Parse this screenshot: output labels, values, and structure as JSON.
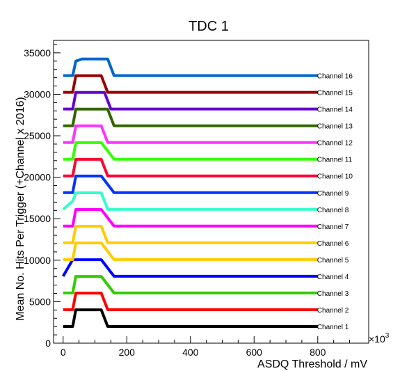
{
  "chart_data": {
    "type": "line",
    "title": "TDC 1",
    "xlabel": "ASDQ Threshold / mV",
    "ylabel": "Mean No. Hits Per Trigger (+Channel x 2016)",
    "x_exponent_label": "×10",
    "x_exponent_power": "3",
    "xlim": [
      -30,
      960
    ],
    "ylim": [
      0,
      36500
    ],
    "x_ticks": [
      0,
      200,
      400,
      600,
      800
    ],
    "y_ticks": [
      0,
      5000,
      10000,
      15000,
      20000,
      25000,
      30000,
      35000
    ],
    "x_tick_labels": [
      "0",
      "200",
      "400",
      "600",
      "800"
    ],
    "y_tick_labels": [
      "0",
      "5000",
      "10000",
      "15000",
      "20000",
      "25000",
      "30000",
      "35000"
    ],
    "grid": false,
    "series": [
      {
        "name": "Channel 1",
        "color": "#000000",
        "x": [
          0,
          30,
          40,
          120,
          140,
          800
        ],
        "y": [
          2016,
          2016,
          4016,
          4016,
          2016,
          2016
        ]
      },
      {
        "name": "Channel 2",
        "color": "#ff0000",
        "x": [
          0,
          30,
          40,
          120,
          140,
          800
        ],
        "y": [
          4032,
          4032,
          6032,
          6032,
          4032,
          4032
        ]
      },
      {
        "name": "Channel 3",
        "color": "#33cc00",
        "x": [
          0,
          30,
          40,
          120,
          160,
          800
        ],
        "y": [
          6048,
          6048,
          8048,
          8048,
          6048,
          6048
        ]
      },
      {
        "name": "Channel 4",
        "color": "#0000ff",
        "x": [
          0,
          30,
          40,
          120,
          160,
          800
        ],
        "y": [
          8064,
          10064,
          10064,
          10064,
          8064,
          8064
        ]
      },
      {
        "name": "Channel 5",
        "color": "#ffcc00",
        "x": [
          0,
          30,
          40,
          120,
          160,
          800
        ],
        "y": [
          10080,
          10080,
          12080,
          12080,
          10080,
          10080
        ]
      },
      {
        "name": "Channel 6",
        "color": "#ffcc00",
        "x": [
          0,
          30,
          40,
          120,
          140,
          800
        ],
        "y": [
          12096,
          12096,
          14096,
          14096,
          12096,
          12096
        ]
      },
      {
        "name": "Channel 7",
        "color": "#ff00ff",
        "x": [
          0,
          30,
          40,
          120,
          160,
          800
        ],
        "y": [
          14112,
          14112,
          16112,
          16112,
          14112,
          14112
        ]
      },
      {
        "name": "Channel 8",
        "color": "#33ffcc",
        "x": [
          0,
          30,
          40,
          120,
          140,
          800
        ],
        "y": [
          16128,
          17128,
          18128,
          18128,
          16128,
          16128
        ]
      },
      {
        "name": "Channel 9",
        "color": "#0033ff",
        "x": [
          0,
          30,
          40,
          120,
          160,
          800
        ],
        "y": [
          18144,
          18144,
          20144,
          20144,
          18144,
          18144
        ]
      },
      {
        "name": "Channel 10",
        "color": "#ff0033",
        "x": [
          0,
          30,
          40,
          120,
          140,
          800
        ],
        "y": [
          20160,
          20160,
          22160,
          22160,
          20160,
          20160
        ]
      },
      {
        "name": "Channel 11",
        "color": "#33ff00",
        "x": [
          0,
          30,
          40,
          120,
          160,
          800
        ],
        "y": [
          22176,
          22176,
          24176,
          24176,
          22176,
          22176
        ]
      },
      {
        "name": "Channel 12",
        "color": "#ff33ff",
        "x": [
          0,
          30,
          40,
          120,
          140,
          800
        ],
        "y": [
          24192,
          24192,
          26192,
          26192,
          24192,
          24192
        ]
      },
      {
        "name": "Channel 13",
        "color": "#336600",
        "x": [
          0,
          30,
          40,
          140,
          160,
          800
        ],
        "y": [
          26208,
          26208,
          28208,
          28208,
          26208,
          26208
        ]
      },
      {
        "name": "Channel 14",
        "color": "#6600cc",
        "x": [
          0,
          30,
          40,
          130,
          150,
          800
        ],
        "y": [
          28224,
          28224,
          30224,
          30224,
          28224,
          28224
        ]
      },
      {
        "name": "Channel 15",
        "color": "#990000",
        "x": [
          0,
          30,
          40,
          120,
          140,
          800
        ],
        "y": [
          30240,
          30240,
          32240,
          32240,
          30240,
          30240
        ]
      },
      {
        "name": "Channel 16",
        "color": "#0066cc",
        "x": [
          0,
          30,
          40,
          60,
          140,
          160,
          800
        ],
        "y": [
          32256,
          32256,
          34000,
          34256,
          34256,
          32256,
          32256
        ]
      }
    ]
  }
}
